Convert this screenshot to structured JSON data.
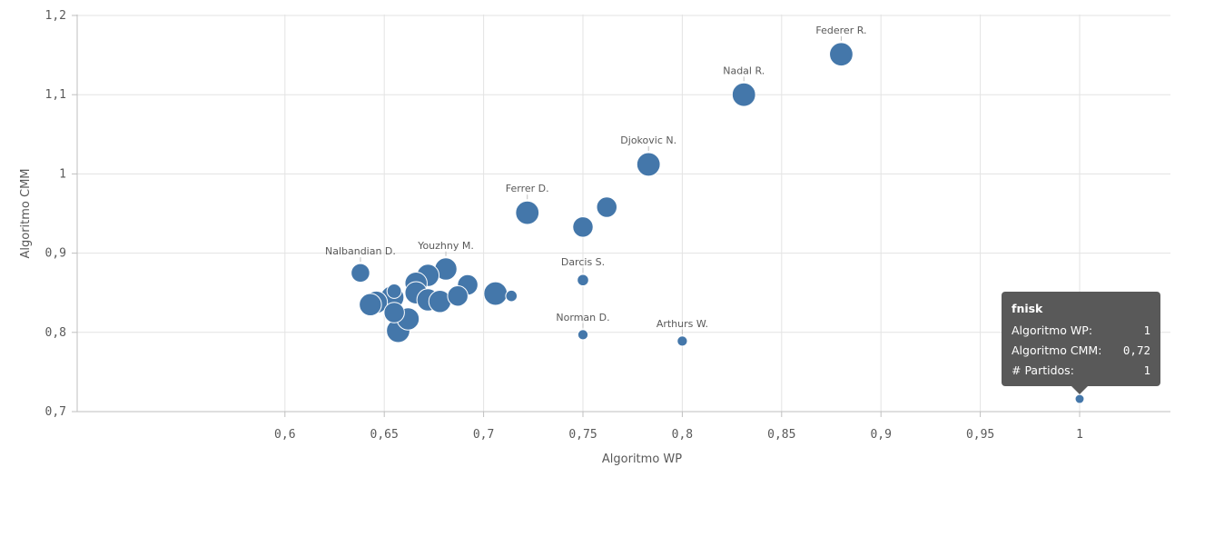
{
  "chart_data": {
    "type": "scatter",
    "xlabel": "Algoritmo WP",
    "ylabel": "Algoritmo CMM",
    "xlim": [
      0.6,
      1.0
    ],
    "ylim": [
      0.7,
      1.2
    ],
    "x_ticks": [
      {
        "value": 0.6,
        "label": "0,6"
      },
      {
        "value": 0.65,
        "label": "0,65"
      },
      {
        "value": 0.7,
        "label": "0,7"
      },
      {
        "value": 0.75,
        "label": "0,75"
      },
      {
        "value": 0.8,
        "label": "0,8"
      },
      {
        "value": 0.85,
        "label": "0,85"
      },
      {
        "value": 0.9,
        "label": "0,9"
      },
      {
        "value": 0.95,
        "label": "0,95"
      },
      {
        "value": 1.0,
        "label": "1"
      }
    ],
    "y_ticks": [
      {
        "value": 0.7,
        "label": "0,7"
      },
      {
        "value": 0.8,
        "label": "0,8"
      },
      {
        "value": 0.9,
        "label": "0,9"
      },
      {
        "value": 1.0,
        "label": "1"
      },
      {
        "value": 1.1,
        "label": "1,1"
      },
      {
        "value": 1.2,
        "label": "1,2"
      }
    ],
    "grid": true,
    "bubble_color": "#4477aa",
    "points": [
      {
        "x": 0.88,
        "y": 1.151,
        "size": 3,
        "label": "Federer R."
      },
      {
        "x": 0.831,
        "y": 1.1,
        "size": 3,
        "label": "Nadal R."
      },
      {
        "x": 0.783,
        "y": 1.012,
        "size": 3,
        "label": "Djokovic N."
      },
      {
        "x": 0.722,
        "y": 0.951,
        "size": 3,
        "label": "Ferrer D."
      },
      {
        "x": 0.762,
        "y": 0.958,
        "size": 2.5,
        "label": ""
      },
      {
        "x": 0.75,
        "y": 0.933,
        "size": 2.5,
        "label": ""
      },
      {
        "x": 0.75,
        "y": 0.866,
        "size": 1,
        "label": "Darcis S."
      },
      {
        "x": 0.75,
        "y": 0.797,
        "size": 0.8,
        "label": "Norman D."
      },
      {
        "x": 0.8,
        "y": 0.789,
        "size": 0.8,
        "label": "Arthurs W."
      },
      {
        "x": 1.0,
        "y": 0.716,
        "size": 0.6,
        "label": ""
      },
      {
        "x": 0.638,
        "y": 0.875,
        "size": 2.2,
        "label": "Nalbandian D."
      },
      {
        "x": 0.681,
        "y": 0.88,
        "size": 2.8,
        "label": "Youzhny M."
      },
      {
        "x": 0.672,
        "y": 0.872,
        "size": 2.8,
        "label": ""
      },
      {
        "x": 0.692,
        "y": 0.86,
        "size": 2.5,
        "label": ""
      },
      {
        "x": 0.666,
        "y": 0.862,
        "size": 2.8,
        "label": ""
      },
      {
        "x": 0.666,
        "y": 0.85,
        "size": 2.8,
        "label": ""
      },
      {
        "x": 0.655,
        "y": 0.852,
        "size": 1.5,
        "label": ""
      },
      {
        "x": 0.654,
        "y": 0.844,
        "size": 3,
        "label": ""
      },
      {
        "x": 0.687,
        "y": 0.846,
        "size": 2.5,
        "label": ""
      },
      {
        "x": 0.706,
        "y": 0.849,
        "size": 3,
        "label": ""
      },
      {
        "x": 0.714,
        "y": 0.846,
        "size": 1,
        "label": ""
      },
      {
        "x": 0.646,
        "y": 0.838,
        "size": 2.8,
        "label": ""
      },
      {
        "x": 0.643,
        "y": 0.835,
        "size": 2.8,
        "label": ""
      },
      {
        "x": 0.672,
        "y": 0.841,
        "size": 2.8,
        "label": ""
      },
      {
        "x": 0.678,
        "y": 0.839,
        "size": 2.8,
        "label": ""
      },
      {
        "x": 0.655,
        "y": 0.825,
        "size": 2.5,
        "label": ""
      },
      {
        "x": 0.662,
        "y": 0.817,
        "size": 2.8,
        "label": ""
      },
      {
        "x": 0.657,
        "y": 0.802,
        "size": 3,
        "label": ""
      }
    ]
  },
  "tooltip": {
    "title": "fnisk",
    "rows": [
      {
        "label": "Algoritmo WP:",
        "value": "1"
      },
      {
        "label": "Algoritmo CMM:",
        "value": "0,72"
      },
      {
        "label": "# Partidos:",
        "value": "1"
      }
    ]
  }
}
